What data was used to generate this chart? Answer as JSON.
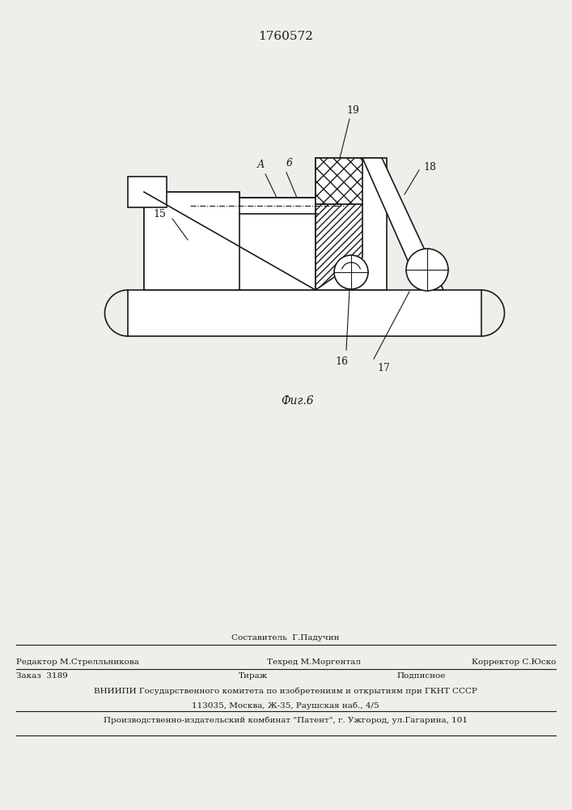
{
  "patent_number": "1760572",
  "fig_label": "Фиг.6",
  "bg": "#f0eeea",
  "lc": "#1a1a1a",
  "footer_line1_c": "Составитель  Г.Падучин",
  "footer_line2_l": "Редактор М.Стрелльникова",
  "footer_line2_c": "Техред М.Моргентал",
  "footer_line2_r": "Корректор С.Юско",
  "footer_line3_c1": "Заказ  3189",
  "footer_line3_c2": "Тираж",
  "footer_line3_c3": "Подписное",
  "footer_line4": "ВНИИПИ Государственного комитета по изобретениям и открытиям при ГКНТ СССР",
  "footer_line5": "113035, Москва, Ж-35, Раушская наб., 4/5",
  "footer_line6": "Производственно-издательский комбинат \"Патент\", г. Ужгород, ул.Гагарина, 101"
}
